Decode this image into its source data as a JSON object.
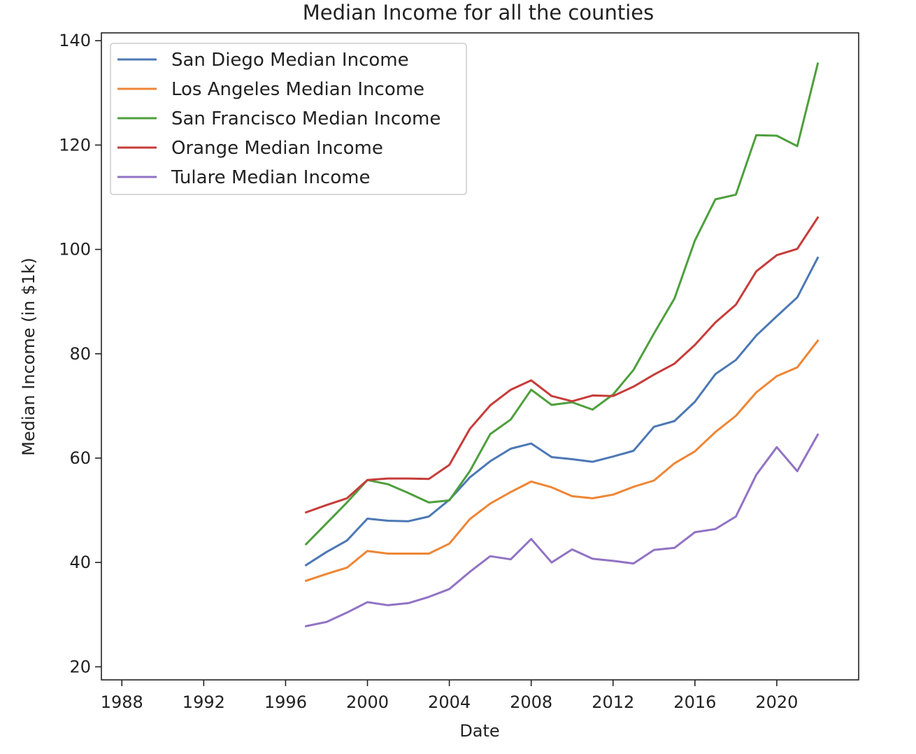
{
  "chart_data": {
    "type": "line",
    "title": "Median Income for all the counties",
    "xlabel": "Date",
    "ylabel": "Median Income (in $1k)",
    "xlim": [
      1987,
      2024
    ],
    "ylim": [
      17.5,
      141.5
    ],
    "xticks": [
      1988,
      1992,
      1996,
      2000,
      2004,
      2008,
      2012,
      2016,
      2020
    ],
    "yticks": [
      20,
      40,
      60,
      80,
      100,
      120,
      140
    ],
    "grid": false,
    "legend_position": "top-left",
    "x": [
      1997,
      1998,
      1999,
      2000,
      2001,
      2002,
      2003,
      2004,
      2005,
      2006,
      2007,
      2008,
      2009,
      2010,
      2011,
      2012,
      2013,
      2014,
      2015,
      2016,
      2017,
      2018,
      2019,
      2020,
      2021,
      2022
    ],
    "series": [
      {
        "name": "San Diego Median Income",
        "color": "#4c78b5",
        "values": [
          39.5,
          42.0,
          44.2,
          48.4,
          48.0,
          47.9,
          48.8,
          52.0,
          56.3,
          59.4,
          61.8,
          62.8,
          60.2,
          59.8,
          59.3,
          60.3,
          61.4,
          66.0,
          67.1,
          70.8,
          76.1,
          78.8,
          83.5,
          87.2,
          90.8,
          98.4
        ]
      },
      {
        "name": "Los Angeles Median Income",
        "color": "#ee8635",
        "values": [
          36.5,
          37.8,
          39.0,
          42.2,
          41.7,
          41.7,
          41.7,
          43.6,
          48.3,
          51.3,
          53.5,
          55.5,
          54.4,
          52.7,
          52.3,
          53.0,
          54.5,
          55.7,
          59.0,
          61.3,
          65.0,
          68.1,
          72.6,
          75.7,
          77.4,
          82.5
        ]
      },
      {
        "name": "San Francisco Median Income",
        "color": "#4e9f3d",
        "values": [
          43.5,
          47.5,
          51.5,
          55.8,
          55.0,
          53.3,
          51.5,
          51.9,
          57.5,
          64.6,
          67.4,
          73.1,
          70.2,
          70.7,
          69.3,
          72.2,
          76.9,
          83.9,
          90.6,
          101.7,
          109.6,
          110.5,
          121.9,
          121.8,
          119.8,
          135.6
        ]
      },
      {
        "name": "Orange Median Income",
        "color": "#c63c3a",
        "values": [
          49.6,
          51.0,
          52.3,
          55.8,
          56.1,
          56.1,
          56.0,
          58.7,
          65.6,
          70.1,
          73.1,
          74.9,
          71.9,
          70.9,
          72.0,
          71.9,
          73.7,
          76.0,
          78.1,
          81.7,
          86.0,
          89.4,
          95.8,
          98.9,
          100.1,
          106.1
        ]
      },
      {
        "name": "Tulare Median Income",
        "color": "#9173c4",
        "values": [
          27.8,
          28.6,
          30.4,
          32.4,
          31.8,
          32.2,
          33.4,
          34.9,
          38.2,
          41.2,
          40.6,
          44.5,
          40.0,
          42.5,
          40.7,
          40.3,
          39.8,
          42.4,
          42.8,
          45.8,
          46.4,
          48.8,
          56.8,
          62.1,
          57.5,
          64.5
        ]
      }
    ]
  }
}
